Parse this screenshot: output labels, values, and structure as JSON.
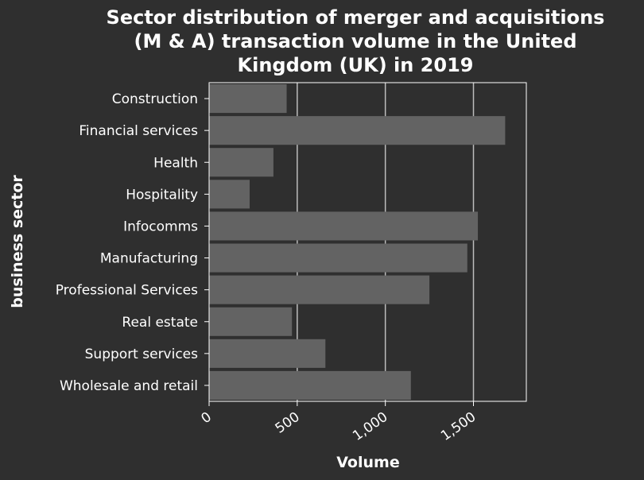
{
  "chart_data": {
    "type": "bar",
    "orientation": "horizontal",
    "title": "Sector distribution of merger and acquisitions (M & A) transaction volume in the United Kingdom (UK) in 2019",
    "title_lines": [
      "Sector distribution of merger and acquisitions",
      "(M & A) transaction volume in the United",
      "Kingdom (UK) in 2019"
    ],
    "xlabel": "Volume",
    "ylabel": "business sector",
    "categories": [
      "Construction",
      "Financial services",
      "Health",
      "Hospitality",
      "Infocomms",
      "Manufacturing",
      "Professional Services",
      "Real estate",
      "Support services",
      "Wholesale and retail"
    ],
    "values": [
      440,
      1680,
      365,
      230,
      1525,
      1465,
      1250,
      470,
      660,
      1145
    ],
    "xlim": [
      0,
      1800
    ],
    "xticks": [
      0,
      500,
      1000,
      1500
    ],
    "xtick_labels": [
      "0",
      "500",
      "1,000",
      "1,500"
    ],
    "grid": "vertical",
    "colors": {
      "background": "#2f2f2f",
      "bar": "#636363",
      "grid": "#bdbdbd",
      "text": "#ffffff"
    }
  }
}
